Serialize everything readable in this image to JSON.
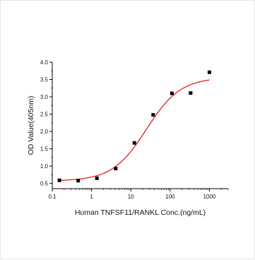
{
  "chart_data": {
    "type": "scatter",
    "title": "",
    "xlabel": "Human TNFSF11/RANKL Conc.(ng/mL)",
    "ylabel": "OD Value(405nm)",
    "xscale": "log",
    "xlim": [
      0.1,
      3000
    ],
    "ylim": [
      0.35,
      4.0
    ],
    "xticks": [
      0.1,
      1,
      10,
      100,
      1000
    ],
    "xtick_labels": [
      "0.1",
      "1",
      "10",
      "100",
      "1000"
    ],
    "yticks": [
      0.5,
      1.0,
      1.5,
      2.0,
      2.5,
      3.0,
      3.5,
      4.0
    ],
    "ytick_labels": [
      "0.5",
      "1.0",
      "1.5",
      "2.0",
      "2.5",
      "3.0",
      "3.5",
      "4.0"
    ],
    "grid": false,
    "series": [
      {
        "kind": "points",
        "marker": "square",
        "color": "#000000",
        "x": [
          0.152,
          0.457,
          1.37,
          4.12,
          12.3,
          37.0,
          111,
          333,
          1000
        ],
        "y": [
          0.59,
          0.58,
          0.65,
          0.93,
          1.67,
          2.48,
          3.1,
          3.11,
          3.71
        ]
      },
      {
        "kind": "fit",
        "color": "#e02020",
        "model": "4PL",
        "params": {
          "bottom": 0.57,
          "top": 3.56,
          "ec50": 25,
          "hill": 1.0
        },
        "x_range": [
          0.152,
          1000
        ]
      }
    ]
  }
}
